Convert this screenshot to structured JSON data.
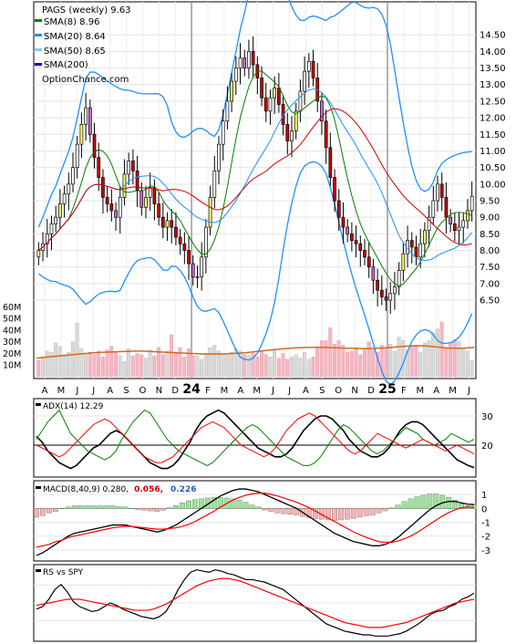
{
  "chart_data": [
    {
      "type": "candlestick",
      "panel": "price",
      "title": "PAGS (weekly) 9.63",
      "watermark": "OptionChance.com",
      "legend_placement": "top-left",
      "legend": [
        {
          "label": "SMA(8) 8.96",
          "color": "#008000"
        },
        {
          "label": "SMA(20) 8.64",
          "color": "#1e90ff"
        },
        {
          "label": "SMA(50) 8.65",
          "color": "#87cefa"
        },
        {
          "label": "SMA(200)",
          "color": "#0000cd"
        }
      ],
      "y_ticks": [
        "6.50",
        "7.00",
        "7.50",
        "8.00",
        "8.50",
        "9.00",
        "9.50",
        "10.00",
        "10.50",
        "11.00",
        "11.50",
        "12.00",
        "12.50",
        "13.00",
        "13.50",
        "14.00",
        "14.50"
      ],
      "ylim": [
        6.2,
        15.0
      ],
      "x_labels": [
        "A",
        "M",
        "J",
        "J",
        "A",
        "S",
        "O",
        "N",
        "D",
        "24",
        "F",
        "M",
        "A",
        "M",
        "J",
        "J",
        "A",
        "S",
        "O",
        "N",
        "D",
        "25",
        "F",
        "M",
        "A",
        "M",
        "J"
      ],
      "closes": [
        8.0,
        8.2,
        8.5,
        8.8,
        9.0,
        9.4,
        9.7,
        10.0,
        10.5,
        11.2,
        11.8,
        12.3,
        11.5,
        10.8,
        10.2,
        9.6,
        9.4,
        9.2,
        9.0,
        9.6,
        10.3,
        10.7,
        10.4,
        9.8,
        9.3,
        9.6,
        9.9,
        9.4,
        9.0,
        8.7,
        8.9,
        8.7,
        8.4,
        8.2,
        8.0,
        7.6,
        7.2,
        7.2,
        7.8,
        8.7,
        9.6,
        10.4,
        11.2,
        11.9,
        12.5,
        13.1,
        13.5,
        13.8,
        13.5,
        14.0,
        13.6,
        13.2,
        12.6,
        12.2,
        12.6,
        12.9,
        12.4,
        11.8,
        11.3,
        11.6,
        12.2,
        12.8,
        13.4,
        13.7,
        13.2,
        12.5,
        11.9,
        11.1,
        10.2,
        9.5,
        9.0,
        8.7,
        8.5,
        8.3,
        8.2,
        8.0,
        7.8,
        7.5,
        7.1,
        6.8,
        6.6,
        6.5,
        6.7,
        6.9,
        7.4,
        7.9,
        8.3,
        8.1,
        7.8,
        8.2,
        8.6,
        9.0,
        9.5,
        10.0,
        9.6,
        9.0,
        8.8,
        8.6,
        8.7,
        8.9,
        9.2,
        9.63
      ],
      "series": [
        {
          "name": "SMA(8)",
          "value": 8.96
        },
        {
          "name": "SMA(20)",
          "value": 8.64
        },
        {
          "name": "SMA(50)",
          "value": 8.65
        },
        {
          "name": "SMA(200)"
        }
      ]
    },
    {
      "type": "bar",
      "panel": "volume",
      "y_ticks": [
        "10M",
        "20M",
        "30M",
        "40M",
        "50M",
        "60M"
      ],
      "ylim": [
        0,
        65
      ],
      "volumes": [
        14,
        16,
        22,
        21,
        29,
        26,
        19,
        21,
        30,
        46,
        24,
        19,
        21,
        19,
        22,
        17,
        23,
        26,
        21,
        18,
        13,
        24,
        18,
        20,
        19,
        16,
        23,
        18,
        25,
        19,
        22,
        36,
        21,
        25,
        17,
        24,
        18,
        18,
        15,
        20,
        25,
        27,
        22,
        19,
        20,
        21,
        24,
        22,
        19,
        18,
        20,
        17,
        22,
        19,
        17,
        23,
        16,
        20,
        15,
        17,
        19,
        16,
        21,
        15,
        17,
        25,
        31,
        31,
        42,
        28,
        31,
        27,
        21,
        22,
        25,
        19,
        24,
        30,
        23,
        21,
        27,
        24,
        28,
        22,
        34,
        31,
        23,
        26,
        27,
        21,
        29,
        31,
        38,
        41,
        47,
        25,
        29,
        32,
        30,
        24,
        22,
        14
      ],
      "average": [
        16,
        16.5,
        17,
        17.5,
        18,
        18.5,
        19,
        19.5,
        20,
        20.5,
        20.8,
        21,
        21.2,
        21.4,
        21.6,
        21.8,
        22,
        22,
        21.8,
        21.5,
        21.2,
        21,
        20.8,
        20.5,
        20.3,
        20,
        19.8,
        19.6,
        19.5,
        19.5,
        19.6,
        19.8,
        20,
        20.3,
        20.7,
        21.2,
        21.8,
        22.4,
        23,
        23.5,
        24,
        24.4,
        24.8,
        25,
        25.2,
        25.3,
        25.3,
        25.2,
        25,
        24.8,
        24.6,
        24.4,
        24.3,
        24.2,
        24.2,
        24.4,
        24.7,
        25,
        25.4,
        25.8,
        26.2,
        26.5,
        26.6,
        26.4,
        26,
        25.5,
        25,
        24.6,
        24.4,
        24.5,
        24.8,
        25.2
      ]
    },
    {
      "type": "line",
      "panel": "adx",
      "label": "ADX(14) 12.29",
      "y_ticks": [
        "20",
        "30"
      ],
      "ylim": [
        10,
        35
      ],
      "series": [
        {
          "name": "ADX",
          "color": "#000000",
          "values": [
            23,
            21,
            18,
            16,
            14,
            13,
            12,
            13,
            15,
            17,
            19,
            20,
            22,
            24,
            25,
            24,
            22,
            20,
            18,
            16,
            14,
            13,
            12,
            12,
            13,
            15,
            18,
            21,
            25,
            28,
            30,
            31,
            32,
            31,
            29,
            27,
            25,
            23,
            21,
            19,
            18,
            17,
            16,
            16,
            17,
            19,
            22,
            25,
            27,
            29,
            30,
            30,
            29,
            27,
            25,
            22,
            20,
            18,
            17,
            16,
            16,
            17,
            19,
            22,
            25,
            27,
            28,
            28,
            27,
            25,
            23,
            21,
            19,
            17,
            15,
            14,
            13,
            12.3
          ]
        },
        {
          "name": "+DI",
          "color": "#008000",
          "values": [
            22,
            25,
            28,
            30,
            32,
            28,
            24,
            22,
            20,
            18,
            17,
            16,
            15,
            16,
            18,
            22,
            25,
            28,
            30,
            32,
            31,
            28,
            25,
            22,
            20,
            18,
            17,
            16,
            15,
            14,
            13,
            14,
            16,
            18,
            20,
            22,
            24,
            26,
            27,
            26,
            24,
            22,
            20,
            18,
            16,
            15,
            14,
            13,
            13,
            14,
            16,
            19,
            22,
            25,
            27,
            26,
            24,
            22,
            20,
            18,
            17,
            18,
            20,
            22,
            24,
            26,
            25,
            24,
            22,
            21,
            20,
            21,
            22,
            24,
            23,
            22,
            21,
            22
          ]
        },
        {
          "name": "-DI",
          "color": "#ff0000",
          "values": [
            20,
            19,
            18,
            17,
            16,
            17,
            19,
            21,
            23,
            25,
            27,
            28,
            29,
            28,
            26,
            24,
            22,
            20,
            18,
            16,
            15,
            14,
            14,
            15,
            16,
            18,
            20,
            22,
            24,
            26,
            27,
            28,
            27,
            26,
            24,
            22,
            20,
            19,
            18,
            17,
            16,
            17,
            19,
            22,
            25,
            27,
            29,
            30,
            31,
            30,
            28,
            26,
            24,
            22,
            20,
            18,
            17,
            18,
            20,
            22,
            24,
            23,
            22,
            21,
            20,
            19,
            20,
            21,
            22,
            21,
            20,
            19,
            18,
            19,
            20,
            19,
            18,
            17
          ]
        }
      ]
    },
    {
      "type": "bar",
      "panel": "macd",
      "label": "MACD(8,40,9) 0.280,",
      "signal_label": "0.056,",
      "histogram_label": "0.226",
      "y_ticks": [
        "1",
        "0",
        "-1",
        "-2",
        "-3"
      ],
      "ylim": [
        -3.6,
        1.8
      ],
      "macd": [
        -3.4,
        -3.2,
        -2.9,
        -2.6,
        -2.3,
        -2,
        -1.8,
        -1.7,
        -1.6,
        -1.5,
        -1.4,
        -1.3,
        -1.2,
        -1.2,
        -1.2,
        -1.3,
        -1.4,
        -1.5,
        -1.6,
        -1.7,
        -1.6,
        -1.4,
        -1.2,
        -0.9,
        -0.6,
        -0.3,
        0,
        0.3,
        0.6,
        0.9,
        1.1,
        1.3,
        1.4,
        1.4,
        1.3,
        1.2,
        1,
        0.8,
        0.6,
        0.4,
        0.2,
        0,
        -0.3,
        -0.6,
        -0.9,
        -1.2,
        -1.5,
        -1.8,
        -2,
        -2.2,
        -2.4,
        -2.5,
        -2.6,
        -2.7,
        -2.7,
        -2.6,
        -2.4,
        -2.1,
        -1.7,
        -1.3,
        -0.9,
        -0.5,
        -0.1,
        0.2,
        0.4,
        0.5,
        0.5,
        0.4,
        0.3,
        0.28
      ],
      "signal": [
        -2.8,
        -2.7,
        -2.6,
        -2.4,
        -2.3,
        -2.1,
        -2,
        -1.9,
        -1.8,
        -1.7,
        -1.6,
        -1.5,
        -1.4,
        -1.35,
        -1.3,
        -1.3,
        -1.35,
        -1.4,
        -1.45,
        -1.5,
        -1.5,
        -1.45,
        -1.4,
        -1.3,
        -1.15,
        -0.95,
        -0.7,
        -0.45,
        -0.2,
        0.1,
        0.35,
        0.6,
        0.8,
        0.95,
        1.05,
        1.1,
        1.1,
        1,
        0.9,
        0.75,
        0.6,
        0.45,
        0.25,
        0.05,
        -0.2,
        -0.45,
        -0.7,
        -0.95,
        -1.2,
        -1.45,
        -1.7,
        -1.9,
        -2.1,
        -2.25,
        -2.4,
        -2.45,
        -2.45,
        -2.35,
        -2.2,
        -2,
        -1.75,
        -1.45,
        -1.15,
        -0.85,
        -0.55,
        -0.3,
        -0.1,
        0.05,
        0.1,
        0.056
      ]
    },
    {
      "type": "line",
      "panel": "rs",
      "label": "RS vs SPY",
      "series": [
        {
          "name": "RS",
          "color": "#000000",
          "values": [
            42,
            44,
            50,
            58,
            62,
            56,
            48,
            44,
            42,
            40,
            41,
            44,
            47,
            45,
            42,
            40,
            38,
            36,
            35,
            34,
            36,
            40,
            48,
            58,
            66,
            72,
            74,
            73,
            72,
            74,
            73,
            71,
            70,
            68,
            66,
            66,
            65,
            64,
            62,
            60,
            58,
            54,
            50,
            46,
            42,
            38,
            34,
            30,
            28,
            26,
            24,
            23,
            22,
            21,
            21,
            20,
            20,
            20,
            21,
            22,
            24,
            27,
            30,
            34,
            38,
            40,
            41,
            44,
            46,
            50,
            52,
            55
          ]
        },
        {
          "name": "RS average",
          "color": "#ff0000",
          "values": [
            45,
            46,
            47,
            48,
            49,
            50,
            50,
            50,
            49,
            48,
            47,
            46,
            45,
            44,
            43,
            42,
            41,
            41,
            41,
            42,
            44,
            46,
            49,
            52,
            55,
            58,
            61,
            63,
            65,
            66,
            67,
            67,
            66,
            65,
            63,
            61,
            59,
            57,
            55,
            53,
            51,
            49,
            47,
            45,
            43,
            41,
            39,
            37,
            35,
            33,
            31,
            30,
            29,
            28,
            27,
            27,
            27,
            28,
            29,
            30,
            31,
            33,
            35,
            37,
            39,
            41,
            43,
            45,
            47,
            48,
            49,
            50
          ]
        }
      ]
    }
  ]
}
